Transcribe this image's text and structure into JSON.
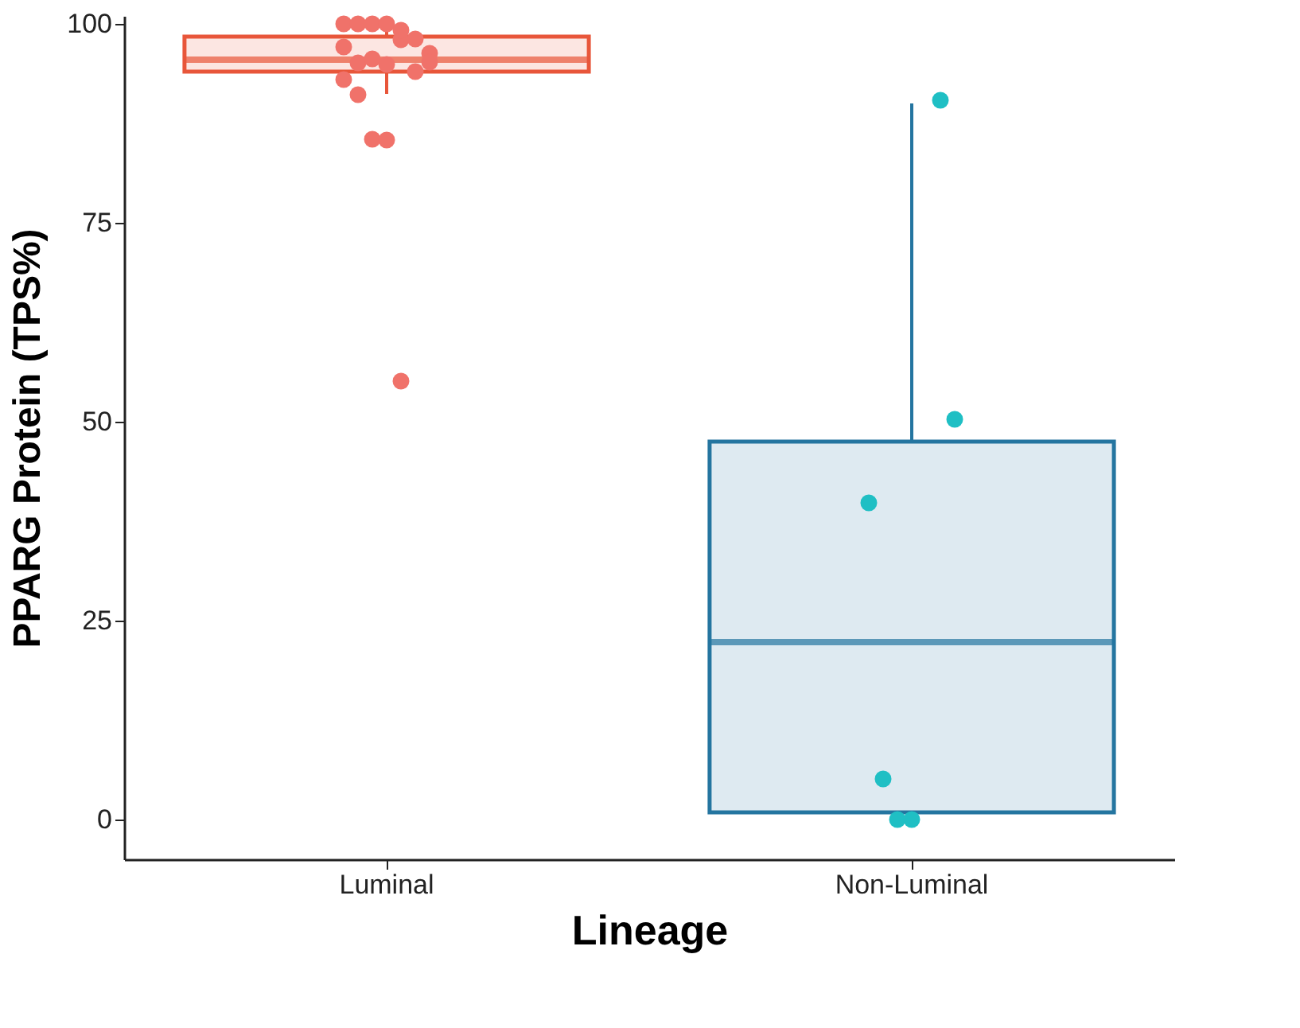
{
  "chart_data": {
    "type": "box",
    "xlabel": "Lineage",
    "ylabel": "PPARG Protein (TPS%)",
    "categories": [
      "Luminal",
      "Non-Luminal"
    ],
    "ylim": [
      -5,
      101
    ],
    "yticks": [
      0,
      25,
      50,
      75,
      100
    ],
    "grid": false,
    "series": [
      {
        "type": "box",
        "colors": [
          "#e8563a",
          "#2475a0"
        ],
        "boxes": [
          {
            "low": 91.2,
            "q1": 94.0,
            "median": 95.5,
            "q3": 98.4,
            "high": 100
          },
          {
            "low": 0,
            "q1": 0.9,
            "median": 22.3,
            "q3": 47.5,
            "high": 90
          }
        ]
      },
      {
        "type": "scatter",
        "marker": "circle",
        "x": [
          "Luminal",
          "Luminal",
          "Luminal",
          "Luminal",
          "Luminal",
          "Luminal",
          "Luminal",
          "Luminal",
          "Luminal",
          "Luminal",
          "Luminal",
          "Luminal",
          "Luminal",
          "Luminal",
          "Luminal",
          "Luminal",
          "Luminal",
          "Luminal",
          "Luminal",
          "Non-Luminal",
          "Non-Luminal",
          "Non-Luminal",
          "Non-Luminal",
          "Non-Luminal",
          "Non-Luminal"
        ],
        "values": [
          100,
          100,
          100,
          100,
          98,
          98.1,
          96.3,
          97.1,
          95.1,
          95.6,
          94.9,
          99.2,
          94,
          95.2,
          93,
          91.1,
          85.5,
          85.4,
          55.1,
          90.4,
          50.3,
          39.8,
          5.1,
          0,
          0
        ],
        "colors": [
          "#f0726a",
          "#f0726a",
          "#f0726a",
          "#f0726a",
          "#f0726a",
          "#f0726a",
          "#f0726a",
          "#f0726a",
          "#f0726a",
          "#f0726a",
          "#f0726a",
          "#f0726a",
          "#f0726a",
          "#f0726a",
          "#f0726a",
          "#f0726a",
          "#f0726a",
          "#f0726a",
          "#f0726a",
          "#1fbfc4",
          "#1fbfc4",
          "#1fbfc4",
          "#1fbfc4",
          "#1fbfc4",
          "#1fbfc4"
        ]
      }
    ]
  }
}
